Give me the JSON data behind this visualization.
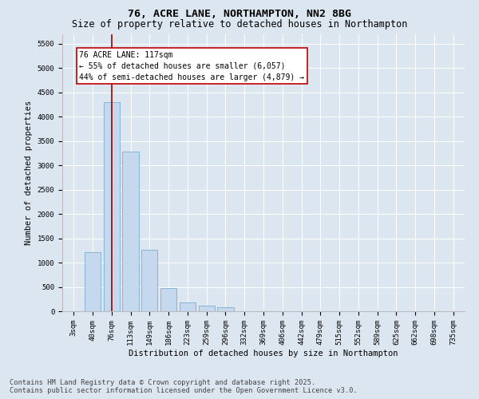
{
  "title1": "76, ACRE LANE, NORTHAMPTON, NN2 8BG",
  "title2": "Size of property relative to detached houses in Northampton",
  "xlabel": "Distribution of detached houses by size in Northampton",
  "ylabel": "Number of detached properties",
  "categories": [
    "3sqm",
    "40sqm",
    "76sqm",
    "113sqm",
    "149sqm",
    "186sqm",
    "223sqm",
    "259sqm",
    "296sqm",
    "332sqm",
    "369sqm",
    "406sqm",
    "442sqm",
    "479sqm",
    "515sqm",
    "552sqm",
    "589sqm",
    "625sqm",
    "662sqm",
    "698sqm",
    "735sqm"
  ],
  "values": [
    0,
    1220,
    4300,
    3280,
    1270,
    480,
    185,
    110,
    80,
    0,
    0,
    0,
    0,
    0,
    0,
    0,
    0,
    0,
    0,
    0,
    0
  ],
  "bar_color": "#c5d8ed",
  "bar_edge_color": "#7aadce",
  "vline_x_idx": 2,
  "vline_color": "#9b0000",
  "annotation_text": "76 ACRE LANE: 117sqm\n← 55% of detached houses are smaller (6,057)\n44% of semi-detached houses are larger (4,879) →",
  "annotation_box_color": "#ffffff",
  "annotation_box_edge": "#c00000",
  "ylim": [
    0,
    5700
  ],
  "yticks": [
    0,
    500,
    1000,
    1500,
    2000,
    2500,
    3000,
    3500,
    4000,
    4500,
    5000,
    5500
  ],
  "bg_color": "#dce6f1",
  "plot_bg": "#dce6f1",
  "footer1": "Contains HM Land Registry data © Crown copyright and database right 2025.",
  "footer2": "Contains public sector information licensed under the Open Government Licence v3.0.",
  "title_fontsize": 9.5,
  "subtitle_fontsize": 8.5,
  "axis_label_fontsize": 7.5,
  "tick_fontsize": 6.5,
  "annotation_fontsize": 7,
  "footer_fontsize": 6.2
}
